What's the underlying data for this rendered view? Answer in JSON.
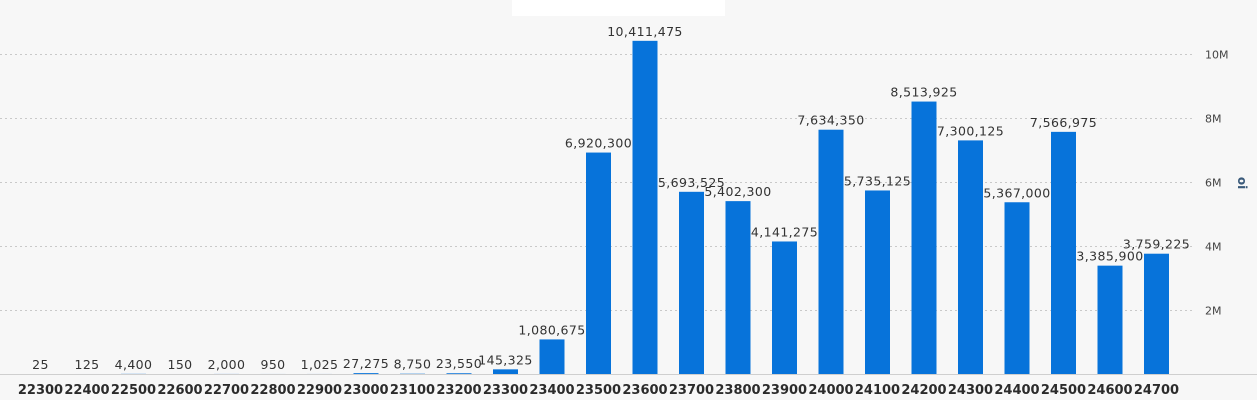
{
  "chart_data": {
    "type": "bar",
    "title": "",
    "xlabel": "",
    "ylabel": "oi",
    "ylim": [
      0,
      11000000
    ],
    "y_ticks": [
      2000000,
      4000000,
      6000000,
      8000000,
      10000000
    ],
    "y_tick_labels": [
      "2M",
      "4M",
      "6M",
      "8M",
      "10M"
    ],
    "y_axis_side": "right",
    "grid": true,
    "bar_color": "#0773da",
    "categories": [
      "22300",
      "22400",
      "22500",
      "22600",
      "22700",
      "22800",
      "22900",
      "23000",
      "23100",
      "23200",
      "23300",
      "23400",
      "23500",
      "23600",
      "23700",
      "23800",
      "23900",
      "24000",
      "24100",
      "24200",
      "24300",
      "24400",
      "24500",
      "24600",
      "24700"
    ],
    "values": [
      25,
      125,
      4400,
      150,
      2000,
      950,
      1025,
      27275,
      8750,
      23550,
      145325,
      1080675,
      6920300,
      10411475,
      5693525,
      5402300,
      4141275,
      7634350,
      5735125,
      8513925,
      7300125,
      5367000,
      7566975,
      3385900,
      3759225
    ],
    "value_labels": [
      "25",
      "125",
      "4,400",
      "150",
      "2,000",
      "950",
      "1,025",
      "27,275",
      "8,750",
      "23,550",
      "145,325",
      "1,080,675",
      "6,920,300",
      "10,411,475",
      "5,693,525",
      "5,402,300",
      "4,141,275",
      "7,634,350",
      "5,735,125",
      "8,513,925",
      "7,300,125",
      "5,367,000",
      "7,566,975",
      "3,385,900",
      "3,759,225"
    ]
  }
}
